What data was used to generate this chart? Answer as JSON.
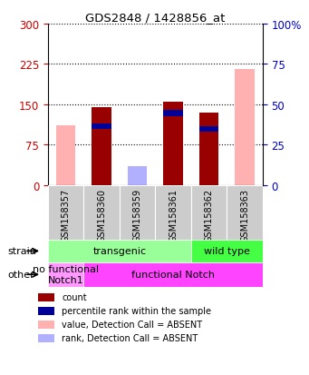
{
  "title": "GDS2848 / 1428856_at",
  "samples": [
    "GSM158357",
    "GSM158360",
    "GSM158359",
    "GSM158361",
    "GSM158362",
    "GSM158363"
  ],
  "count_values": [
    0,
    145,
    0,
    155,
    135,
    0
  ],
  "blue_start": [
    0,
    105,
    0,
    128,
    100,
    0
  ],
  "blue_height": [
    0,
    10,
    0,
    12,
    10,
    0
  ],
  "value_absent_pct": [
    37,
    0,
    5,
    0,
    0,
    72
  ],
  "rank_absent_pct": [
    0,
    0,
    12,
    0,
    0,
    0
  ],
  "ylim_left": [
    0,
    300
  ],
  "ylim_right": [
    0,
    100
  ],
  "yticks_left": [
    0,
    75,
    150,
    225,
    300
  ],
  "yticks_right": [
    0,
    25,
    50,
    75,
    100
  ],
  "left_tick_color": "#cc0000",
  "right_tick_color": "#0000cc",
  "color_count": "#990000",
  "color_percentile": "#000099",
  "color_value_absent": "#ffb0b0",
  "color_rank_absent": "#b0b0ff",
  "strain_groups": [
    {
      "label": "transgenic",
      "start": 0,
      "end": 4,
      "color": "#99ff99"
    },
    {
      "label": "wild type",
      "start": 4,
      "end": 6,
      "color": "#44ff44"
    }
  ],
  "other_groups": [
    {
      "label": "no functional\nNotch1",
      "start": 0,
      "end": 1,
      "color": "#ff99ff"
    },
    {
      "label": "functional Notch",
      "start": 1,
      "end": 6,
      "color": "#ff44ff"
    }
  ],
  "legend_items": [
    {
      "label": "count",
      "color": "#990000"
    },
    {
      "label": "percentile rank within the sample",
      "color": "#000099"
    },
    {
      "label": "value, Detection Call = ABSENT",
      "color": "#ffb0b0"
    },
    {
      "label": "rank, Detection Call = ABSENT",
      "color": "#b0b0ff"
    }
  ],
  "bar_width": 0.55
}
